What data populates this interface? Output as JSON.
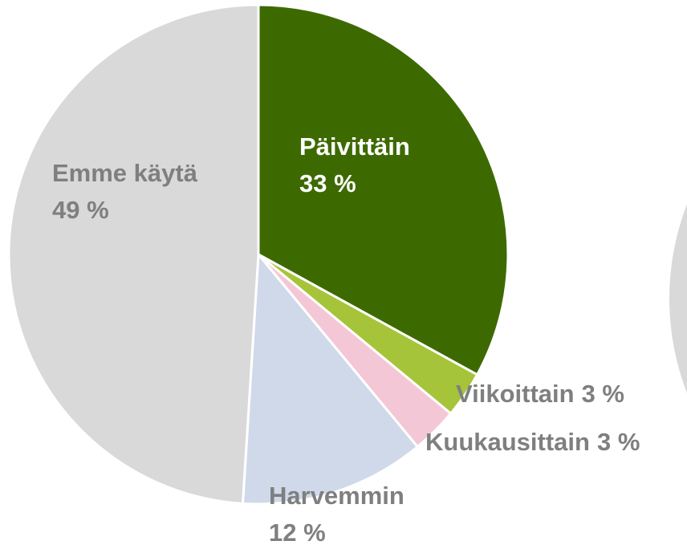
{
  "chart_data": {
    "type": "pie",
    "categories": [
      "Päivittäin",
      "Viikoittain",
      "Kuukausittain",
      "Harvemmin",
      "Emme käytä"
    ],
    "values": [
      33,
      3,
      3,
      12,
      49
    ],
    "value_labels": [
      "33 %",
      "3 %",
      "3 %",
      "12 %",
      "49 %"
    ],
    "colors": [
      "#3d6a00",
      "#a6c43a",
      "#f4c7d7",
      "#cfd9ea",
      "#d9d9d9"
    ]
  }
}
